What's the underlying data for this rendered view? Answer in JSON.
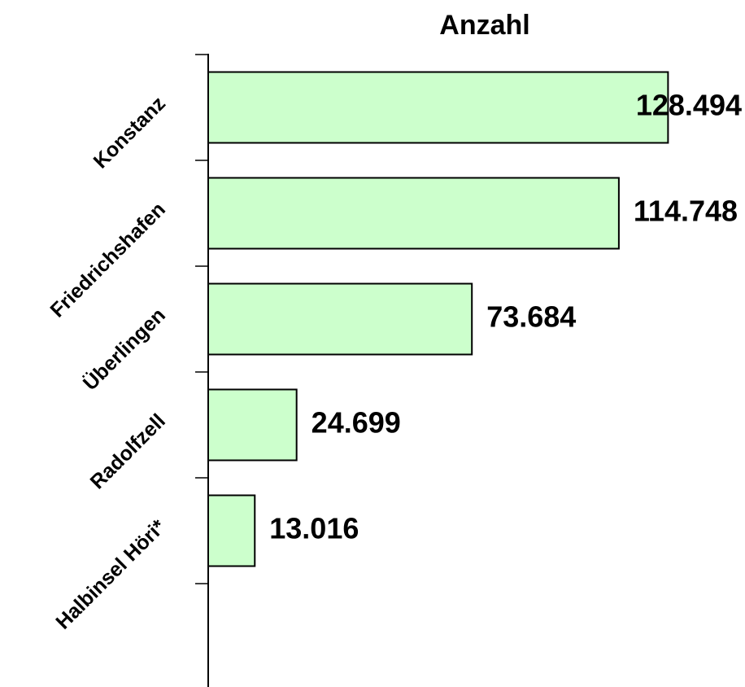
{
  "chart_data": {
    "type": "hbar",
    "title": "Anzahl",
    "categories": [
      "Konstanz",
      "Friedrichshafen",
      "Überlingen",
      "Radolfzell",
      "Halbinsel Höri*"
    ],
    "values": [
      128494,
      114748,
      73684,
      24699,
      13016
    ],
    "value_labels": [
      "128.494",
      "114.748",
      "73.684",
      "24.699",
      "13.016"
    ],
    "color": "#ccffcc",
    "xlim": [
      0,
      150000
    ]
  }
}
